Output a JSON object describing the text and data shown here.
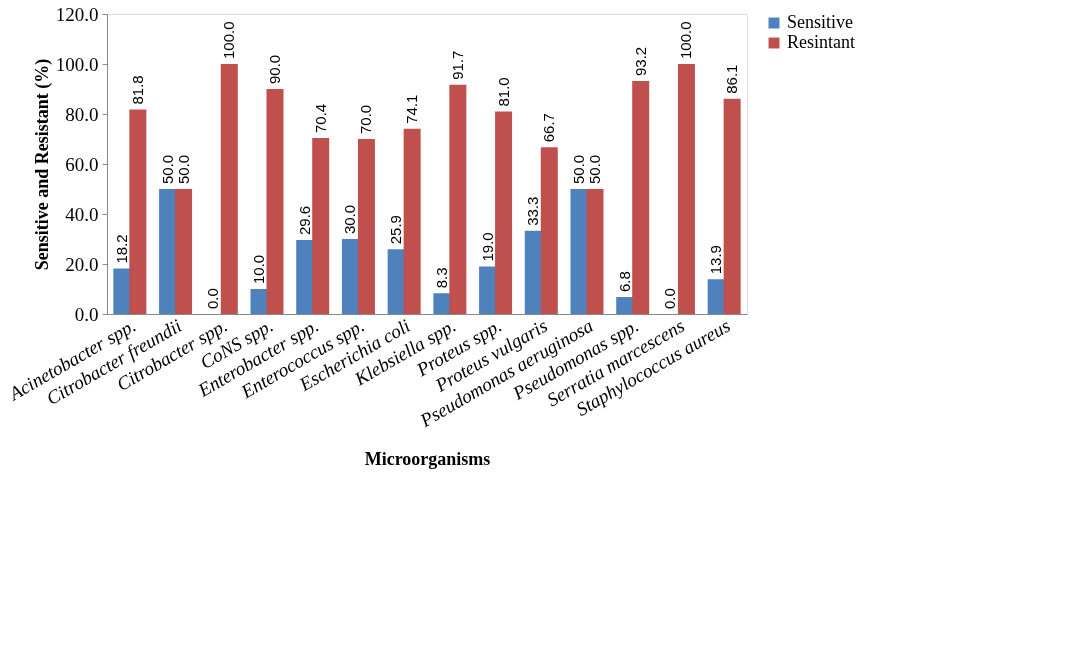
{
  "chart_data": {
    "type": "bar",
    "xlabel": "Microorganisms",
    "ylabel": "Sensitive and Resistant (%)",
    "categories": [
      "Acinetobacter spp.",
      "Citrobacter freundii",
      "Citrobacter spp.",
      "CoNS spp.",
      "Enterobacter spp.",
      "Enterococcus spp.",
      "Escherichia coli",
      "Klebsiella spp.",
      "Proteus spp.",
      "Proteus vulgaris",
      "Pseudomonas aeruginosa",
      "Pseudomonas spp.",
      "Serratia marcescens",
      "Staphylococcus aureus"
    ],
    "series": [
      {
        "name": "Sensitive",
        "color": "#4f81bd",
        "values": [
          18.2,
          50.0,
          0.0,
          10.0,
          29.6,
          30.0,
          25.9,
          8.3,
          19.0,
          33.3,
          50.0,
          6.8,
          0.0,
          13.9
        ],
        "value_labels": [
          "18.2",
          "50.0",
          "0.0",
          "10.0",
          "29.6",
          "30.0",
          "25.9",
          "8.3",
          "19.0",
          "33.3",
          "50.0",
          "6.8",
          "0.0",
          "13.9"
        ]
      },
      {
        "name": "Resintant",
        "color": "#c0504d",
        "values": [
          81.8,
          50.0,
          100.0,
          90.0,
          70.4,
          70.0,
          74.1,
          91.7,
          81.0,
          66.7,
          50.0,
          93.2,
          100.0,
          86.1
        ],
        "value_labels": [
          "81.8",
          "50.0",
          "100.0",
          "90.0",
          "70.4",
          "70.0",
          "74.1",
          "91.7",
          "81.0",
          "66.7",
          "50.0",
          "93.2",
          "100.0",
          "86.1"
        ]
      }
    ],
    "ylim": [
      0,
      120
    ],
    "yticks": [
      {
        "value": 0,
        "label": "0.0"
      },
      {
        "value": 20,
        "label": "20.0"
      },
      {
        "value": 40,
        "label": "40.0"
      },
      {
        "value": 60,
        "label": "60.0"
      },
      {
        "value": 80,
        "label": "80.0"
      },
      {
        "value": 100,
        "label": "100.0"
      },
      {
        "value": 120,
        "label": "120.0"
      }
    ],
    "grid": false,
    "legend": "right"
  }
}
